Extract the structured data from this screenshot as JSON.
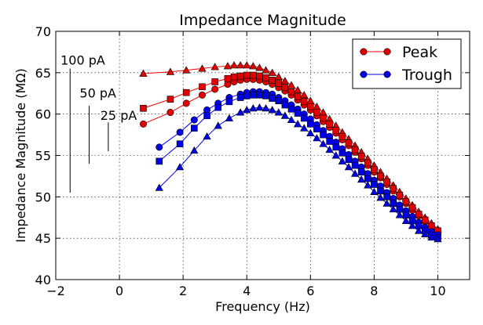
{
  "chart_data": {
    "type": "line",
    "title": "Impedance Magnitude",
    "xlabel": "Frequency (Hz)",
    "ylabel": "Impedance Magnitude (MΩ)",
    "xlim": [
      -2,
      11
    ],
    "ylim": [
      40,
      70
    ],
    "xticks": [
      -2,
      0,
      2,
      4,
      6,
      8,
      10
    ],
    "yticks": [
      40,
      45,
      50,
      55,
      60,
      65,
      70
    ],
    "grid": true,
    "legend_position": "top-right",
    "legend": [
      {
        "label": "Peak",
        "color": "#ff0000",
        "marker": "circle"
      },
      {
        "label": "Trough",
        "color": "#0000ff",
        "marker": "circle"
      }
    ],
    "scale_bars": [
      {
        "label": "100 pA",
        "x": -1.55,
        "y_top": 65.5,
        "y_bottom": 50.5,
        "label_x": -1.85,
        "label_y": 66.0
      },
      {
        "label": "50 pA",
        "x": -0.95,
        "y_top": 61.0,
        "y_bottom": 54.0,
        "label_x": -1.25,
        "label_y": 62.0
      },
      {
        "label": "25 pA",
        "x": -0.35,
        "y_top": 59.0,
        "y_bottom": 55.5,
        "label_x": -0.6,
        "label_y": 59.3
      }
    ],
    "series": [
      {
        "group": "Peak",
        "marker": "triangle",
        "color": "#ff0000",
        "x": [
          0.75,
          1.6,
          2.1,
          2.6,
          3.0,
          3.4,
          3.6,
          3.8,
          4.0,
          4.2,
          4.4,
          4.6,
          4.8,
          5.0,
          5.2,
          5.4,
          5.6,
          5.8,
          6.0,
          6.2,
          6.4,
          6.6,
          6.8,
          7.0,
          7.2,
          7.4,
          7.6,
          7.8,
          8.0,
          8.2,
          8.4,
          8.6,
          8.8,
          9.0,
          9.2,
          9.4,
          9.6,
          9.8,
          10.0
        ],
        "y": [
          64.9,
          65.1,
          65.3,
          65.5,
          65.7,
          65.8,
          65.9,
          65.9,
          65.9,
          65.8,
          65.6,
          65.3,
          65.0,
          64.5,
          64.0,
          63.5,
          62.9,
          62.3,
          61.6,
          60.9,
          60.2,
          59.4,
          58.6,
          57.8,
          57.0,
          56.2,
          55.4,
          54.6,
          53.8,
          53.0,
          52.2,
          51.4,
          50.6,
          49.8,
          49.0,
          48.2,
          47.5,
          46.8,
          46.1
        ]
      },
      {
        "group": "Peak",
        "marker": "circle",
        "color": "#ff0000",
        "x": [
          0.75,
          1.6,
          2.1,
          2.6,
          3.0,
          3.4,
          3.6,
          3.8,
          4.0,
          4.2,
          4.4,
          4.6,
          4.8,
          5.0,
          5.2,
          5.4,
          5.6,
          5.8,
          6.0,
          6.2,
          6.4,
          6.6,
          6.8,
          7.0,
          7.2,
          7.4,
          7.6,
          7.8,
          8.0,
          8.2,
          8.4,
          8.6,
          8.8,
          9.0,
          9.2,
          9.4,
          9.6,
          9.8,
          10.0
        ],
        "y": [
          58.8,
          60.2,
          61.3,
          62.3,
          63.0,
          63.6,
          63.9,
          64.1,
          64.2,
          64.2,
          64.1,
          63.9,
          63.6,
          63.2,
          62.8,
          62.3,
          61.7,
          61.1,
          60.5,
          59.8,
          59.1,
          58.4,
          57.7,
          56.9,
          56.2,
          55.4,
          54.6,
          53.8,
          53.0,
          52.3,
          51.5,
          50.7,
          50.0,
          49.2,
          48.4,
          47.7,
          47.0,
          46.3,
          45.7
        ]
      },
      {
        "group": "Peak",
        "marker": "square",
        "color": "#ff0000",
        "x": [
          0.75,
          1.6,
          2.1,
          2.6,
          3.0,
          3.4,
          3.6,
          3.8,
          4.0,
          4.2,
          4.4,
          4.6,
          4.8,
          5.0,
          5.2,
          5.4,
          5.6,
          5.8,
          6.0,
          6.2,
          6.4,
          6.6,
          6.8,
          7.0,
          7.2,
          7.4,
          7.6,
          7.8,
          8.0,
          8.2,
          8.4,
          8.6,
          8.8,
          9.0,
          9.2,
          9.4,
          9.6,
          9.8,
          10.0
        ],
        "y": [
          60.7,
          61.8,
          62.6,
          63.3,
          63.9,
          64.3,
          64.5,
          64.6,
          64.7,
          64.7,
          64.6,
          64.4,
          64.1,
          63.7,
          63.2,
          62.7,
          62.1,
          61.5,
          60.9,
          60.2,
          59.5,
          58.8,
          58.0,
          57.3,
          56.5,
          55.7,
          54.9,
          54.1,
          53.3,
          52.5,
          51.8,
          51.0,
          50.2,
          49.4,
          48.7,
          47.9,
          47.2,
          46.5,
          45.9
        ]
      },
      {
        "group": "Trough",
        "marker": "circle",
        "color": "#0000ff",
        "x": [
          1.25,
          1.9,
          2.35,
          2.75,
          3.1,
          3.45,
          3.8,
          4.0,
          4.2,
          4.4,
          4.6,
          4.8,
          5.0,
          5.2,
          5.4,
          5.6,
          5.8,
          6.0,
          6.2,
          6.4,
          6.6,
          6.8,
          7.0,
          7.2,
          7.4,
          7.6,
          7.8,
          8.0,
          8.2,
          8.4,
          8.6,
          8.8,
          9.0,
          9.2,
          9.4,
          9.6,
          9.8,
          10.0
        ],
        "y": [
          56.0,
          57.8,
          59.3,
          60.5,
          61.3,
          62.0,
          62.4,
          62.6,
          62.7,
          62.7,
          62.6,
          62.4,
          62.0,
          61.6,
          61.1,
          60.6,
          60.0,
          59.4,
          58.7,
          58.0,
          57.3,
          56.6,
          55.8,
          55.1,
          54.3,
          53.6,
          52.8,
          52.0,
          51.3,
          50.5,
          49.8,
          49.0,
          48.3,
          47.6,
          46.9,
          46.3,
          45.8,
          45.4
        ]
      },
      {
        "group": "Trough",
        "marker": "square",
        "color": "#0000ff",
        "x": [
          1.25,
          1.9,
          2.35,
          2.75,
          3.1,
          3.45,
          3.8,
          4.0,
          4.2,
          4.4,
          4.6,
          4.8,
          5.0,
          5.2,
          5.4,
          5.6,
          5.8,
          6.0,
          6.2,
          6.4,
          6.6,
          6.8,
          7.0,
          7.2,
          7.4,
          7.6,
          7.8,
          8.0,
          8.2,
          8.4,
          8.6,
          8.8,
          9.0,
          9.2,
          9.4,
          9.6,
          9.8,
          10.0
        ],
        "y": [
          54.3,
          56.4,
          58.3,
          59.8,
          60.8,
          61.5,
          62.0,
          62.2,
          62.3,
          62.3,
          62.2,
          61.9,
          61.6,
          61.1,
          60.6,
          60.1,
          59.5,
          58.8,
          58.2,
          57.5,
          56.7,
          56.0,
          55.3,
          54.5,
          53.8,
          53.0,
          52.2,
          51.5,
          50.7,
          50.0,
          49.2,
          48.5,
          47.8,
          47.1,
          46.5,
          45.9,
          45.4,
          45.1
        ]
      },
      {
        "group": "Trough",
        "marker": "triangle",
        "color": "#0000ff",
        "x": [
          1.25,
          1.9,
          2.35,
          2.75,
          3.1,
          3.45,
          3.8,
          4.0,
          4.2,
          4.4,
          4.6,
          4.8,
          5.0,
          5.2,
          5.4,
          5.6,
          5.8,
          6.0,
          6.2,
          6.4,
          6.6,
          6.8,
          7.0,
          7.2,
          7.4,
          7.6,
          7.8,
          8.0,
          8.2,
          8.4,
          8.6,
          8.8,
          9.0,
          9.2,
          9.4,
          9.6,
          9.8,
          10.0
        ],
        "y": [
          51.1,
          53.6,
          55.6,
          57.3,
          58.6,
          59.5,
          60.2,
          60.5,
          60.7,
          60.8,
          60.7,
          60.5,
          60.2,
          59.8,
          59.3,
          58.8,
          58.3,
          57.7,
          57.1,
          56.4,
          55.7,
          55.0,
          54.3,
          53.6,
          52.8,
          52.1,
          51.4,
          50.6,
          49.9,
          49.2,
          48.5,
          47.8,
          47.1,
          46.5,
          45.9,
          45.5,
          45.1,
          44.9
        ]
      }
    ]
  }
}
